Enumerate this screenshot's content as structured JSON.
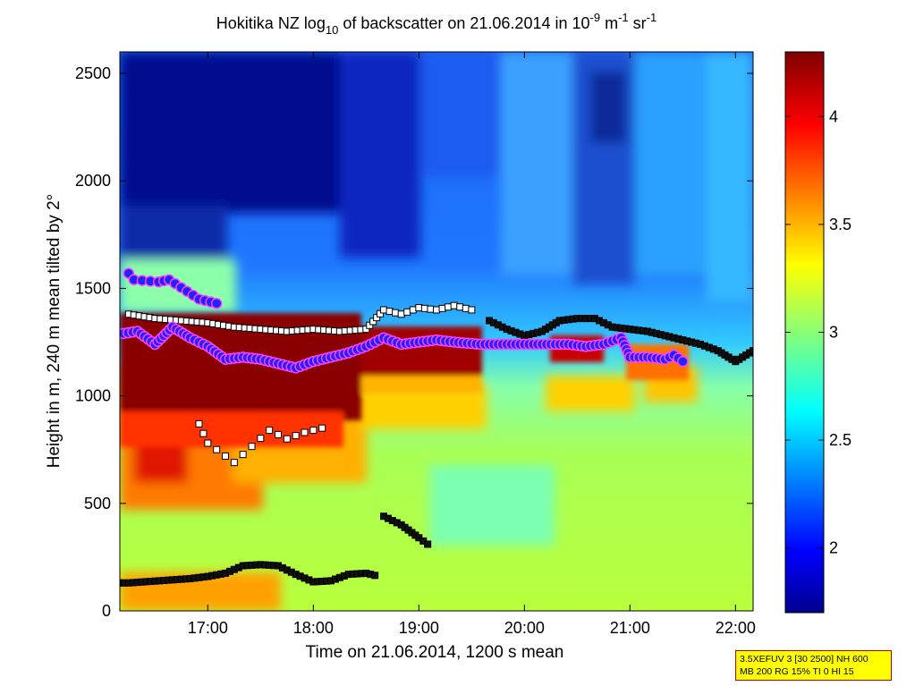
{
  "chart_data": {
    "type": "heatmap",
    "title": {
      "prefix": "Hokitika NZ log",
      "prefix_sub": "10",
      "middle": " of backscatter on 21.06.2014 in 10",
      "sup1": "-9",
      "unit1": " m",
      "sup2": "-1",
      "unit2": " sr",
      "sup3": "-1"
    },
    "xlabel": "Time on 21.06.2014, 1200 s mean",
    "ylabel": "Height in m, 240 m mean tilted by 2°",
    "xlim": [
      "16:10",
      "22:10"
    ],
    "ylim": [
      0,
      2600
    ],
    "xticks": [
      "17:00",
      "18:00",
      "19:00",
      "20:00",
      "21:00",
      "22:00"
    ],
    "yticks": [
      "0",
      "500",
      "1000",
      "1500",
      "2000",
      "2500"
    ],
    "colorbar": {
      "range": [
        1.7,
        4.3
      ],
      "colormap": "jet",
      "ticks": [
        "2",
        "2.5",
        "3",
        "3.5",
        "4"
      ]
    },
    "layers": {
      "blue_dots_cloud_base": [
        [
          "16:12",
          1290
        ],
        [
          "16:20",
          1300
        ],
        [
          "16:30",
          1240
        ],
        [
          "16:40",
          1320
        ],
        [
          "16:50",
          1270
        ],
        [
          "17:00",
          1230
        ],
        [
          "17:10",
          1170
        ],
        [
          "17:20",
          1180
        ],
        [
          "17:30",
          1170
        ],
        [
          "17:40",
          1150
        ],
        [
          "17:50",
          1130
        ],
        [
          "18:00",
          1160
        ],
        [
          "18:10",
          1180
        ],
        [
          "18:20",
          1200
        ],
        [
          "18:30",
          1230
        ],
        [
          "18:40",
          1270
        ],
        [
          "18:50",
          1240
        ],
        [
          "19:00",
          1250
        ],
        [
          "19:10",
          1260
        ],
        [
          "19:20",
          1250
        ],
        [
          "19:35",
          1240
        ],
        [
          "19:55",
          1240
        ],
        [
          "20:25",
          1240
        ],
        [
          "20:35",
          1230
        ],
        [
          "20:45",
          1240
        ],
        [
          "20:55",
          1270
        ],
        [
          "21:00",
          1180
        ],
        [
          "21:10",
          1180
        ],
        [
          "21:20",
          1170
        ],
        [
          "21:25",
          1190
        ],
        [
          "21:30",
          1160
        ]
      ],
      "blue_dots_upper": [
        [
          "16:15",
          1570
        ],
        [
          "16:18",
          1540
        ],
        [
          "16:32",
          1530
        ],
        [
          "16:38",
          1540
        ],
        [
          "16:55",
          1450
        ],
        [
          "17:05",
          1430
        ]
      ],
      "black_squares_boundary_layer": [
        [
          "16:10",
          130
        ],
        [
          "16:15",
          130
        ],
        [
          "16:50",
          150
        ],
        [
          "17:00",
          160
        ],
        [
          "17:10",
          175
        ],
        [
          "17:20",
          210
        ],
        [
          "17:30",
          215
        ],
        [
          "17:40",
          210
        ],
        [
          "17:50",
          170
        ],
        [
          "18:00",
          135
        ],
        [
          "18:10",
          140
        ],
        [
          "18:20",
          170
        ],
        [
          "18:30",
          175
        ],
        [
          "18:35",
          165
        ]
      ],
      "black_squares_residual_layer": [
        [
          "18:40",
          440
        ],
        [
          "18:50",
          400
        ],
        [
          "19:00",
          340
        ],
        [
          "19:05",
          310
        ]
      ],
      "black_squares_cloud_layer": [
        [
          "19:40",
          1350
        ],
        [
          "19:50",
          1310
        ],
        [
          "20:00",
          1280
        ],
        [
          "20:10",
          1300
        ],
        [
          "20:20",
          1350
        ],
        [
          "20:30",
          1360
        ],
        [
          "20:40",
          1360
        ],
        [
          "20:50",
          1320
        ],
        [
          "21:00",
          1310
        ],
        [
          "21:10",
          1300
        ],
        [
          "21:20",
          1280
        ],
        [
          "21:30",
          1260
        ],
        [
          "21:40",
          1240
        ],
        [
          "21:50",
          1210
        ],
        [
          "22:00",
          1160
        ],
        [
          "22:10",
          1210
        ]
      ],
      "white_squares_cloud_top": [
        [
          "16:15",
          1380
        ],
        [
          "16:30",
          1360
        ],
        [
          "16:45",
          1350
        ],
        [
          "17:00",
          1340
        ],
        [
          "17:15",
          1320
        ],
        [
          "17:30",
          1310
        ],
        [
          "17:45",
          1300
        ],
        [
          "18:00",
          1310
        ],
        [
          "18:15",
          1300
        ],
        [
          "18:30",
          1310
        ],
        [
          "18:40",
          1400
        ],
        [
          "18:50",
          1380
        ],
        [
          "19:00",
          1410
        ],
        [
          "19:10",
          1400
        ],
        [
          "19:20",
          1420
        ],
        [
          "19:30",
          1400
        ]
      ],
      "white_squares_lower": [
        [
          "16:55",
          870
        ],
        [
          "17:00",
          780
        ],
        [
          "17:15",
          690
        ],
        [
          "17:35",
          840
        ],
        [
          "17:45",
          800
        ],
        [
          "17:55",
          830
        ],
        [
          "18:05",
          850
        ]
      ]
    }
  },
  "info_box": {
    "line1": "3.5XEFUV 3 [30 2500] NH 600",
    "line2": "MB 200 RG 15% TI 0 HI 15"
  }
}
